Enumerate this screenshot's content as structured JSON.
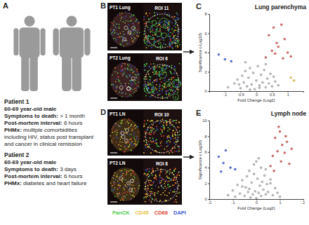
{
  "panels": [
    {
      "letter": "A"
    },
    {
      "letter": "B",
      "tiles": [
        {
          "label": "PT1 Lung",
          "roi": "ROI 11"
        },
        {
          "label": "PT2 Lung",
          "roi": "ROI 6"
        }
      ]
    },
    {
      "letter": "C"
    },
    {
      "letter": "D",
      "tiles": [
        {
          "label": "PT1 LN",
          "roi": "ROI 10"
        },
        {
          "label": "PT2 LN",
          "roi": "ROI 8"
        }
      ]
    },
    {
      "letter": "E"
    }
  ],
  "patients": [
    {
      "name": "Patient 1",
      "description": "60-69 year-old male",
      "fields": [
        {
          "label": "Symptoms to death:",
          "value": "> 1 month"
        },
        {
          "label": "Post-mortem interval:",
          "value": "6 hours"
        },
        {
          "label": "PHMx:",
          "value": "multiple comorbidities including HIV, status post transplant and cancer in clinical remission"
        }
      ]
    },
    {
      "name": "Patient 2",
      "description": "60-69 year-old male",
      "fields": [
        {
          "label": "Symptoms to death:",
          "value": "3 days"
        },
        {
          "label": "Post-mortem interval:",
          "value": "6 hours"
        },
        {
          "label": "PHMx:",
          "value": "diabetes and heart failure"
        }
      ]
    }
  ],
  "stains": [
    {
      "name": "PanCK",
      "color": "#4fcf4f"
    },
    {
      "name": "CD45",
      "color": "#e6c13f"
    },
    {
      "name": "CD68",
      "color": "#e0453a"
    },
    {
      "name": "DAPI",
      "color": "#3a5ad9"
    }
  ],
  "chart_data": [
    {
      "type": "scatter",
      "title": "Lung parenchyma",
      "xlabel": "Fold Change (Log2)",
      "ylabel": "Significance (-Log10)",
      "xlim": [
        -1.5,
        1.5
      ],
      "xticks": [
        -1,
        -0.5,
        0,
        0.5,
        1
      ],
      "ylim": [
        0,
        8
      ],
      "yticks": [
        0,
        2,
        4,
        6,
        8
      ],
      "series": [
        {
          "color": "#b5b5b5",
          "x": [
            -0.9,
            -0.7,
            -0.6,
            -0.5,
            -0.45,
            -0.4,
            -0.35,
            -0.3,
            -0.25,
            -0.2,
            -0.15,
            -0.1,
            -0.05,
            0,
            0.05,
            0.1,
            0.15,
            0.2,
            0.25,
            0.3,
            0.35,
            0.4,
            0.45,
            0.5,
            0.6,
            0.7,
            -0.55,
            0.55,
            -0.2,
            0.1,
            0.3,
            -0.35
          ],
          "y": [
            0.4,
            0.8,
            1.2,
            0.3,
            1.6,
            0.9,
            2.1,
            0.5,
            1.4,
            2.4,
            0.7,
            1.9,
            0.2,
            1.1,
            2.6,
            0.6,
            1.7,
            0.9,
            2.2,
            0.4,
            1.3,
            0.8,
            1.8,
            0.5,
            1.0,
            0.6,
            0.7,
            1.5,
            0.15,
            0.35,
            2.8,
            3.0
          ]
        },
        {
          "color": "#d9534f",
          "x": [
            0.3,
            0.4,
            0.5,
            0.55,
            0.6,
            0.65,
            0.7,
            0.8,
            0.85,
            0.9,
            1.0,
            1.1
          ],
          "y": [
            3.5,
            5.8,
            4.2,
            6.6,
            3.9,
            5.0,
            4.6,
            6.9,
            3.4,
            5.4,
            4.0,
            3.6
          ]
        },
        {
          "color": "#3b5bdb",
          "x": [
            -1.2,
            -1.0,
            -0.8
          ],
          "y": [
            3.8,
            3.3,
            3.1
          ]
        },
        {
          "color": "#f2c94c",
          "x": [
            1.1,
            1.2
          ],
          "y": [
            1.4,
            1.1
          ]
        }
      ]
    },
    {
      "type": "scatter",
      "title": "Lymph node",
      "xlabel": "Fold Change (Log2)",
      "ylabel": "Significance (-Log10)",
      "xlim": [
        -2,
        2
      ],
      "xticks": [
        -2,
        -1,
        0,
        1,
        2
      ],
      "ylim": [
        0,
        10
      ],
      "yticks": [
        0,
        2,
        4,
        6,
        8,
        10
      ],
      "series": [
        {
          "color": "#b5b5b5",
          "x": [
            -1.2,
            -1.0,
            -0.9,
            -0.8,
            -0.7,
            -0.6,
            -0.5,
            -0.45,
            -0.4,
            -0.35,
            -0.3,
            -0.25,
            -0.2,
            -0.15,
            -0.1,
            -0.05,
            0,
            0.05,
            0.1,
            0.15,
            0.2,
            0.25,
            0.3,
            0.35,
            0.4,
            0.45,
            0.5,
            0.6,
            0.7,
            0.8,
            0.9,
            1.0,
            -0.3,
            0.2,
            -0.1,
            0.4,
            -0.6,
            0.6,
            0,
            0.1
          ],
          "y": [
            0.5,
            1.1,
            0.3,
            1.8,
            0.7,
            2.4,
            0.4,
            1.5,
            2.9,
            0.9,
            1.3,
            0.2,
            2.1,
            0.6,
            3.2,
            1.0,
            0.1,
            2.6,
            0.8,
            1.7,
            0.4,
            2.2,
            1.2,
            3.0,
            0.6,
            1.9,
            0.9,
            2.5,
            0.5,
            1.4,
            0.8,
            0.3,
            3.6,
            4.0,
            4.4,
            3.8,
            1.6,
            2.0,
            4.8,
            5.2
          ]
        },
        {
          "color": "#d9534f",
          "x": [
            0.6,
            0.7,
            0.8,
            0.9,
            1.0,
            1.05,
            1.1,
            1.2,
            1.3,
            1.4,
            1.5,
            0.75,
            0.95,
            1.25
          ],
          "y": [
            4.2,
            5.5,
            7.8,
            6.1,
            8.6,
            4.8,
            6.9,
            5.9,
            7.3,
            4.5,
            6.4,
            3.6,
            9.2,
            8.0
          ]
        },
        {
          "color": "#3b5bdb",
          "x": [
            -1.6,
            -1.4,
            -1.3,
            -1.1,
            -0.9,
            -1.5
          ],
          "y": [
            5.4,
            4.6,
            6.2,
            4.0,
            3.8,
            3.5
          ]
        }
      ]
    }
  ]
}
